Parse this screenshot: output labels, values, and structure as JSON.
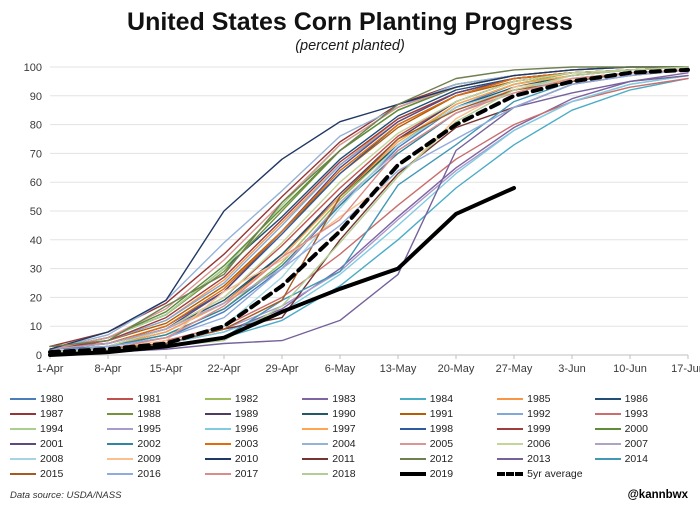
{
  "title": "United States Corn Planting Progress",
  "subtitle": "(percent planted)",
  "footer": {
    "source": "Data source: USDA/NASS",
    "handle": "@kannbwx"
  },
  "chart_data": {
    "type": "line",
    "title": "United States Corn Planting Progress",
    "subtitle": "(percent planted)",
    "xlabel": "",
    "ylabel": "",
    "ylim": [
      0,
      100
    ],
    "y_ticks": [
      0,
      10,
      20,
      30,
      40,
      50,
      60,
      70,
      80,
      90,
      100
    ],
    "grid": "horizontal",
    "legend_position": "bottom",
    "x_labels": [
      "1-Apr",
      "8-Apr",
      "15-Apr",
      "22-Apr",
      "29-Apr",
      "6-May",
      "13-May",
      "20-May",
      "27-May",
      "3-Jun",
      "10-Jun",
      "17-Jun"
    ],
    "series": [
      {
        "name": "1980",
        "color": "#4A7EBB",
        "values": [
          2,
          3,
          6,
          15,
          30,
          52,
          72,
          86,
          94,
          97,
          99,
          100
        ]
      },
      {
        "name": "1981",
        "color": "#C0504D",
        "values": [
          3,
          4,
          9,
          20,
          38,
          58,
          76,
          88,
          95,
          98,
          99,
          100
        ]
      },
      {
        "name": "1982",
        "color": "#9BBB59",
        "values": [
          1,
          3,
          7,
          16,
          32,
          54,
          73,
          87,
          94,
          98,
          99,
          100
        ]
      },
      {
        "name": "1983",
        "color": "#8064A2",
        "values": [
          1,
          2,
          4,
          8,
          16,
          30,
          48,
          65,
          79,
          89,
          95,
          98
        ]
      },
      {
        "name": "1984",
        "color": "#4BACC6",
        "values": [
          1,
          2,
          3,
          6,
          12,
          24,
          40,
          58,
          73,
          85,
          92,
          96
        ]
      },
      {
        "name": "1985",
        "color": "#F79646",
        "values": [
          2,
          5,
          12,
          26,
          46,
          66,
          82,
          91,
          96,
          98,
          99,
          100
        ]
      },
      {
        "name": "1986",
        "color": "#1F4E79",
        "values": [
          2,
          6,
          14,
          30,
          48,
          68,
          83,
          92,
          96,
          98,
          99,
          100
        ]
      },
      {
        "name": "1987",
        "color": "#943634",
        "values": [
          3,
          8,
          18,
          35,
          55,
          74,
          87,
          94,
          97,
          99,
          100,
          100
        ]
      },
      {
        "name": "1988",
        "color": "#76933C",
        "values": [
          2,
          6,
          14,
          29,
          50,
          71,
          85,
          93,
          97,
          99,
          100,
          100
        ]
      },
      {
        "name": "1989",
        "color": "#4D3B62",
        "values": [
          1,
          3,
          8,
          18,
          35,
          56,
          75,
          88,
          95,
          98,
          99,
          100
        ]
      },
      {
        "name": "1990",
        "color": "#215968",
        "values": [
          2,
          4,
          9,
          19,
          35,
          55,
          73,
          86,
          93,
          97,
          99,
          100
        ]
      },
      {
        "name": "1991",
        "color": "#B45F06",
        "values": [
          2,
          5,
          11,
          24,
          43,
          63,
          79,
          90,
          95,
          98,
          99,
          100
        ]
      },
      {
        "name": "1992",
        "color": "#81A8D7",
        "values": [
          2,
          5,
          12,
          25,
          45,
          66,
          81,
          91,
          96,
          98,
          99,
          100
        ]
      },
      {
        "name": "1993",
        "color": "#C96D6D",
        "values": [
          1,
          2,
          5,
          10,
          20,
          35,
          52,
          68,
          80,
          88,
          93,
          96
        ]
      },
      {
        "name": "1994",
        "color": "#A9D08E",
        "values": [
          2,
          6,
          14,
          30,
          52,
          73,
          86,
          94,
          97,
          99,
          100,
          100
        ]
      },
      {
        "name": "1995",
        "color": "#A99BCD",
        "values": [
          1,
          2,
          4,
          9,
          17,
          29,
          47,
          64,
          78,
          88,
          94,
          97
        ]
      },
      {
        "name": "1996",
        "color": "#7FCBE0",
        "values": [
          1,
          2,
          4,
          8,
          15,
          28,
          45,
          63,
          78,
          88,
          94,
          97
        ]
      },
      {
        "name": "1997",
        "color": "#FFA452",
        "values": [
          1,
          3,
          8,
          18,
          34,
          55,
          74,
          87,
          94,
          97,
          99,
          100
        ]
      },
      {
        "name": "1998",
        "color": "#2E5B9F",
        "values": [
          2,
          4,
          10,
          22,
          42,
          63,
          80,
          90,
          96,
          98,
          99,
          100
        ]
      },
      {
        "name": "1999",
        "color": "#A03C3C",
        "values": [
          2,
          5,
          13,
          27,
          47,
          67,
          82,
          91,
          96,
          98,
          99,
          100
        ]
      },
      {
        "name": "2000",
        "color": "#5E8C3A",
        "values": [
          2,
          6,
          15,
          31,
          51,
          71,
          85,
          93,
          97,
          99,
          100,
          100
        ]
      },
      {
        "name": "2001",
        "color": "#5F497A",
        "values": [
          1,
          3,
          9,
          22,
          43,
          65,
          81,
          91,
          96,
          98,
          99,
          100
        ]
      },
      {
        "name": "2002",
        "color": "#31859C",
        "values": [
          1,
          3,
          7,
          16,
          31,
          52,
          70,
          84,
          92,
          96,
          98,
          99
        ]
      },
      {
        "name": "2003",
        "color": "#E36C0A",
        "values": [
          2,
          4,
          10,
          23,
          43,
          64,
          80,
          90,
          96,
          98,
          99,
          100
        ]
      },
      {
        "name": "2004",
        "color": "#95B3D7",
        "values": [
          2,
          7,
          19,
          39,
          57,
          76,
          86,
          94,
          97,
          99,
          100,
          100
        ]
      },
      {
        "name": "2005",
        "color": "#D99694",
        "values": [
          2,
          6,
          16,
          33,
          53,
          73,
          86,
          93,
          97,
          99,
          100,
          100
        ]
      },
      {
        "name": "2006",
        "color": "#C2D69A",
        "values": [
          1,
          3,
          9,
          20,
          39,
          60,
          77,
          88,
          95,
          98,
          99,
          100
        ]
      },
      {
        "name": "2007",
        "color": "#B2A1C7",
        "values": [
          2,
          4,
          9,
          18,
          30,
          53,
          71,
          84,
          92,
          96,
          98,
          99
        ]
      },
      {
        "name": "2008",
        "color": "#A5D5E2",
        "values": [
          1,
          2,
          4,
          10,
          27,
          51,
          73,
          86,
          92,
          96,
          98,
          99
        ]
      },
      {
        "name": "2009",
        "color": "#FAC090",
        "values": [
          1,
          2,
          5,
          22,
          33,
          48,
          62,
          82,
          93,
          96,
          98,
          99
        ]
      },
      {
        "name": "2010",
        "color": "#1F3864",
        "values": [
          2,
          8,
          19,
          50,
          68,
          81,
          87,
          93,
          97,
          99,
          100,
          100
        ]
      },
      {
        "name": "2011",
        "color": "#76332F",
        "values": [
          1,
          2,
          4,
          9,
          13,
          40,
          63,
          79,
          86,
          94,
          97,
          99
        ]
      },
      {
        "name": "2012",
        "color": "#6E8050",
        "values": [
          3,
          5,
          17,
          28,
          53,
          71,
          87,
          96,
          99,
          100,
          100,
          100
        ]
      },
      {
        "name": "2013",
        "color": "#75619B",
        "values": [
          0,
          1,
          2,
          4,
          5,
          12,
          28,
          71,
          86,
          91,
          95,
          97
        ]
      },
      {
        "name": "2014",
        "color": "#4298B5",
        "values": [
          1,
          2,
          3,
          6,
          19,
          29,
          59,
          73,
          88,
          95,
          98,
          99
        ]
      },
      {
        "name": "2015",
        "color": "#A65A21",
        "values": [
          1,
          2,
          4,
          9,
          19,
          55,
          75,
          85,
          92,
          95,
          98,
          99
        ]
      },
      {
        "name": "2016",
        "color": "#8FAADC",
        "values": [
          1,
          3,
          6,
          13,
          30,
          45,
          64,
          75,
          86,
          94,
          97,
          99
        ]
      },
      {
        "name": "2017",
        "color": "#D98C89",
        "values": [
          1,
          2,
          6,
          17,
          34,
          47,
          71,
          84,
          91,
          96,
          98,
          99
        ]
      },
      {
        "name": "2018",
        "color": "#B0CE95",
        "values": [
          1,
          2,
          3,
          5,
          17,
          39,
          62,
          81,
          92,
          97,
          99,
          100
        ]
      },
      {
        "name": "2019",
        "color": "#000000",
        "width": 4,
        "values": [
          0,
          1,
          3,
          6,
          15,
          23,
          30,
          49,
          58,
          null,
          null,
          null
        ]
      },
      {
        "name": "5yr average",
        "color": "#000000",
        "width": 4,
        "dash": true,
        "values": [
          1,
          2,
          4,
          10,
          24,
          43,
          66,
          80,
          90,
          95,
          98,
          99
        ]
      }
    ]
  }
}
